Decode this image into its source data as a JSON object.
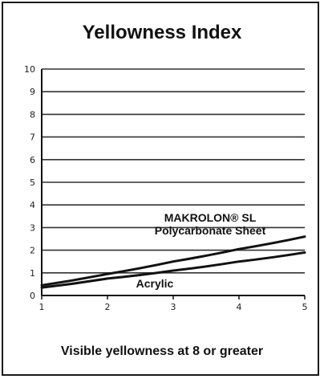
{
  "chart_data": {
    "type": "line",
    "title": "Yellowness Index",
    "xlabel": "",
    "ylabel": "",
    "xlim": [
      1,
      5
    ],
    "ylim": [
      0,
      10
    ],
    "x_ticks": [
      "1",
      "2",
      "3",
      "4",
      "5"
    ],
    "y_ticks": [
      "0",
      "1",
      "2",
      "3",
      "4",
      "5",
      "6",
      "7",
      "8",
      "9",
      "10"
    ],
    "grid": true,
    "x": [
      1,
      2,
      3,
      4,
      5
    ],
    "series": [
      {
        "name": "MAKROLON® SL Polycarbonate Sheet",
        "label_lines": [
          "MAKROLON® SL",
          "Polycarbonate Sheet"
        ],
        "values": [
          0.45,
          0.95,
          1.5,
          2.05,
          2.6
        ],
        "color": "#111111"
      },
      {
        "name": "Acrylic",
        "label_lines": [
          "Acrylic"
        ],
        "values": [
          0.35,
          0.75,
          1.1,
          1.5,
          1.9
        ],
        "color": "#111111"
      }
    ],
    "footnote": "Visible yellowness at 8 or greater"
  },
  "colors": {
    "ink": "#111111",
    "grid": "#333333",
    "background": "#ffffff"
  }
}
